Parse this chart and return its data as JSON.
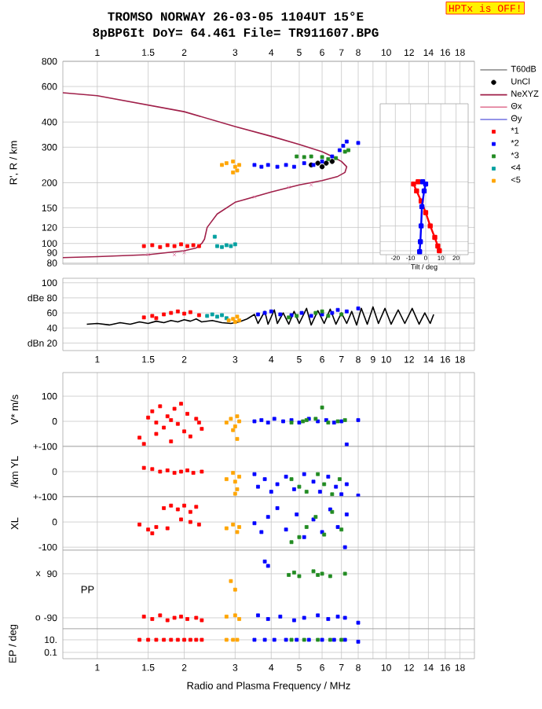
{
  "chart_data": [
    {
      "type": "scatter",
      "title": "TROMSO NORWAY   26-03-05 1104UT 15°E",
      "subtitle": "8pBP6It DoY=  64.461 File= TR911607.BPG",
      "annotations": [
        "HPTx is OFF!"
      ],
      "ylabel": "R', R / km",
      "log": "xy",
      "grid": true,
      "legend": "top right",
      "xlim": [
        0.76,
        20.2
      ],
      "ylim": [
        79,
        800
      ],
      "xticks": [
        1,
        1.5,
        2,
        3,
        4,
        5,
        6,
        7,
        8,
        {
          "value": 9,
          "label": null
        },
        10,
        12,
        14,
        16,
        18
      ],
      "yticks": [
        80,
        90,
        100,
        120,
        150,
        200,
        300,
        400,
        600,
        800
      ],
      "series": [
        {
          "name": "T60dB",
          "type": "line",
          "color": "#999999"
        },
        {
          "name": "UnCl",
          "type": "scatter",
          "marker": "circle",
          "color": "#000000",
          "x": [
            5.5,
            5.8,
            6.2,
            6.5,
            6.0
          ],
          "values": [
            245,
            250,
            250,
            255,
            240
          ]
        },
        {
          "name": "NeXYZ",
          "type": "line",
          "color": "#a0204a",
          "x": [
            0.76,
            1,
            1.5,
            2,
            2.2,
            2.3,
            2.35,
            2.4,
            2.6,
            3,
            4,
            5,
            6,
            6.8,
            7.2,
            7.3,
            7,
            6.5,
            6,
            5,
            4,
            3,
            2,
            1,
            0.76
          ],
          "values": [
            85,
            86,
            88,
            92,
            95,
            100,
            105,
            120,
            140,
            160,
            180,
            195,
            205,
            215,
            225,
            240,
            255,
            270,
            285,
            310,
            340,
            380,
            450,
            540,
            559
          ]
        },
        {
          "name": "Θx",
          "type": "line",
          "color": "#e07090"
        },
        {
          "name": "Θy",
          "type": "line",
          "color": "#7070e0"
        },
        {
          "name": "*1",
          "type": "scatter",
          "marker": "square",
          "color": "#ff0000",
          "x": [
            1.45,
            1.55,
            1.65,
            1.75,
            1.85,
            1.95,
            2.05,
            2.15,
            2.25
          ],
          "values": [
            97,
            98,
            96,
            98,
            97,
            99,
            97,
            98,
            97
          ]
        },
        {
          "name": "*2",
          "type": "scatter",
          "marker": "square",
          "color": "#0000ff",
          "x": [
            3.5,
            3.7,
            3.9,
            4.2,
            4.5,
            4.8,
            5.2,
            5.6,
            6,
            6.5,
            6.9,
            7.1,
            7.3,
            8
          ],
          "values": [
            245,
            240,
            245,
            240,
            245,
            240,
            250,
            245,
            255,
            270,
            290,
            305,
            320,
            315
          ]
        },
        {
          "name": "*3",
          "type": "scatter",
          "marker": "square",
          "color": "#228b22",
          "x": [
            4.9,
            5.2,
            5.5,
            6,
            6.3,
            6.7,
            7.2,
            7.4
          ],
          "values": [
            270,
            268,
            270,
            268,
            262,
            265,
            285,
            290
          ]
        },
        {
          "name": "<4",
          "type": "scatter",
          "marker": "square",
          "color": "#00a0a0",
          "x": [
            2.55,
            2.6,
            2.7,
            2.8,
            2.9,
            3.0
          ],
          "values": [
            108,
            97,
            96,
            98,
            97,
            99
          ]
        },
        {
          "name": "<5",
          "type": "scatter",
          "marker": "square",
          "color": "#ffa500",
          "x": [
            2.7,
            2.8,
            2.95,
            3.0,
            3.05,
            2.95,
            3.1
          ],
          "values": [
            245,
            250,
            255,
            240,
            230,
            225,
            245
          ]
        },
        {
          "type": "scatter",
          "marker": "cross",
          "color": "#e070a0",
          "x": [
            1.5,
            1.85,
            2.0,
            3.5,
            4.6,
            5.5
          ],
          "values": [
            88,
            88,
            90,
            170,
            190,
            195
          ]
        }
      ]
    },
    {
      "type": "line",
      "xlabel": "Tilt / deg",
      "log": "y",
      "grid": true,
      "tick_labels": "x",
      "xlim": [
        -30,
        28
      ],
      "ylim": [
        86,
        494
      ],
      "xticks": [
        -20,
        -10,
        0,
        10,
        20
      ],
      "yticks": [
        90,
        100,
        120,
        150,
        200,
        300,
        400
      ],
      "series": [
        {
          "color": "#ff0000",
          "marker": "square",
          "x": [
            -5,
            -8,
            -6,
            -3,
            0,
            3,
            6,
            8,
            9
          ],
          "values": [
            200,
            195,
            180,
            160,
            140,
            120,
            105,
            95,
            90
          ]
        },
        {
          "color": "#0000ff",
          "marker": "square",
          "x": [
            -2,
            0,
            -1,
            -2.5,
            -3,
            -3.5,
            -4
          ],
          "values": [
            200,
            195,
            180,
            150,
            120,
            100,
            89
          ]
        }
      ]
    },
    {
      "type": "scatter",
      "log": "x",
      "grid": true,
      "xlim": [
        0.76,
        20.2
      ],
      "ylim": [
        10,
        106
      ],
      "xticks": [
        1,
        1.5,
        2,
        3,
        4,
        5,
        6,
        7,
        8,
        9,
        10,
        12,
        14,
        16,
        18
      ],
      "yticks": [
        {
          "value": 20,
          "label": "dBn 20"
        },
        40,
        60,
        {
          "value": 80,
          "label": "dBe 80"
        },
        100
      ],
      "series": [
        {
          "type": "line",
          "color": "#000000",
          "x": [
            0.92,
            1.0,
            1.1,
            1.2,
            1.3,
            1.4,
            1.5,
            1.6,
            1.7,
            1.8,
            1.9,
            2.0,
            2.1,
            2.2,
            2.3,
            2.5,
            2.7,
            2.9,
            3.1,
            3.3,
            3.5,
            3.6,
            3.8,
            3.9,
            4.1,
            4.2,
            4.4,
            4.6,
            4.8,
            5.0,
            5.3,
            5.5,
            5.8,
            6.1,
            6.4,
            6.7,
            7.0,
            7.3,
            7.6,
            7.9,
            8.2,
            8.6,
            9.0,
            9.4,
            9.9,
            10.4,
            11,
            11.6,
            12.3,
            13,
            13.6,
            14.2,
            14.6
          ],
          "values": [
            45,
            46,
            44,
            47,
            45,
            48,
            46,
            49,
            47,
            50,
            48,
            51,
            49,
            52,
            48,
            50,
            47,
            46,
            48,
            52,
            58,
            46,
            62,
            45,
            64,
            46,
            60,
            45,
            62,
            46,
            66,
            44,
            63,
            46,
            65,
            45,
            60,
            46,
            62,
            44,
            66,
            45,
            68,
            46,
            66,
            45,
            64,
            46,
            66,
            45,
            60,
            46,
            58
          ]
        },
        {
          "color": "#ff0000",
          "marker": "square",
          "x": [
            1.45,
            1.55,
            1.6,
            1.7,
            1.8,
            1.9,
            2.0,
            2.1,
            2.25
          ],
          "values": [
            54,
            56,
            53,
            58,
            60,
            62,
            59,
            61,
            57
          ]
        },
        {
          "color": "#00a0a0",
          "marker": "square",
          "x": [
            2.4,
            2.5,
            2.6,
            2.7,
            2.8
          ],
          "values": [
            56,
            58,
            55,
            57,
            53
          ]
        },
        {
          "color": "#ffa500",
          "marker": "square",
          "x": [
            2.85,
            2.95,
            3.0,
            3.05,
            3.1
          ],
          "values": [
            50,
            52,
            48,
            55,
            50
          ]
        },
        {
          "color": "#0000ff",
          "marker": "square",
          "x": [
            3.6,
            3.8,
            4.0,
            4.3,
            4.7,
            5.1,
            5.5,
            6.0,
            6.5,
            6.8,
            7.3,
            8
          ],
          "values": [
            58,
            60,
            62,
            58,
            57,
            60,
            56,
            58,
            60,
            64,
            62,
            66
          ]
        },
        {
          "color": "#228b22",
          "marker": "square",
          "x": [
            4.6,
            4.9,
            5.7,
            6,
            6.3,
            7
          ],
          "values": [
            54,
            56,
            60,
            62,
            56,
            58
          ]
        }
      ]
    },
    {
      "type": "scatter",
      "ylabel": "V* m/s",
      "log": "x",
      "grid": true,
      "tick_labels": "y",
      "xlim": [
        0.76,
        20.2
      ],
      "ylim": [
        -100,
        194
      ],
      "xticks": [
        1,
        1.5,
        2,
        3,
        4,
        5,
        6,
        7,
        8,
        9,
        10,
        12,
        14,
        16,
        18
      ],
      "yticks": [
        100,
        0,
        {
          "value": -100,
          "label": "+-100"
        }
      ],
      "series": [
        {
          "color": "#ff0000",
          "marker": "square",
          "x": [
            1.4,
            1.45,
            1.5,
            1.55,
            1.6,
            1.65,
            1.7,
            1.75,
            1.8,
            1.85,
            1.9,
            1.95,
            2.0,
            2.05,
            2.1,
            2.2,
            2.25,
            2.3,
            1.6,
            1.8
          ],
          "values": [
            -65,
            -90,
            15,
            40,
            -50,
            60,
            -25,
            20,
            -80,
            50,
            -10,
            70,
            -40,
            30,
            -60,
            10,
            -5,
            -30,
            -5,
            5
          ]
        },
        {
          "color": "#ffa500",
          "marker": "square",
          "x": [
            2.8,
            2.9,
            3.0,
            3.05,
            3.1,
            3.05,
            2.95
          ],
          "values": [
            -5,
            10,
            -20,
            20,
            0,
            -70,
            -35
          ]
        },
        {
          "color": "#0000ff",
          "marker": "square",
          "x": [
            3.5,
            3.7,
            3.9,
            4.1,
            4.4,
            4.7,
            5.0,
            5.4,
            5.8,
            6.2,
            6.6,
            7.0,
            7.3,
            8
          ],
          "values": [
            0,
            5,
            -5,
            10,
            0,
            5,
            -5,
            10,
            0,
            5,
            -5,
            0,
            -92,
            5
          ]
        },
        {
          "color": "#228b22",
          "marker": "square",
          "x": [
            4.7,
            5.15,
            5.3,
            5.7,
            6.0,
            6.3,
            6.8,
            7.2
          ],
          "values": [
            -5,
            0,
            5,
            10,
            55,
            -5,
            0,
            5
          ]
        }
      ]
    },
    {
      "type": "scatter",
      "ylabel": "/km YL",
      "log": "x",
      "grid": true,
      "tick_labels": "y",
      "xlim": [
        0.76,
        20.2
      ],
      "ylim": [
        -100,
        100
      ],
      "xticks": [
        1,
        1.5,
        2,
        3,
        4,
        5,
        6,
        7,
        8,
        9,
        10,
        12,
        14,
        16,
        18
      ],
      "yticks": [
        0,
        {
          "value": -100,
          "label": "+-100"
        }
      ],
      "series": [
        {
          "color": "#ff0000",
          "marker": "square",
          "x": [
            1.45,
            1.55,
            1.65,
            1.75,
            1.85,
            1.95,
            2.05,
            2.15,
            2.3
          ],
          "values": [
            15,
            10,
            0,
            5,
            -5,
            0,
            5,
            -5,
            0
          ]
        },
        {
          "color": "#ffa500",
          "marker": "square",
          "x": [
            2.8,
            2.95,
            3.0,
            3.05,
            3.1,
            3.0
          ],
          "values": [
            -30,
            -5,
            -40,
            -70,
            -20,
            -88
          ]
        },
        {
          "color": "#0000ff",
          "marker": "square",
          "x": [
            3.5,
            3.6,
            3.8,
            4.0,
            4.2,
            4.5,
            4.8,
            5.2,
            5.6,
            5.9,
            6.3,
            6.7,
            7.0,
            7.3,
            8
          ],
          "values": [
            -10,
            -60,
            -30,
            -80,
            -50,
            -20,
            -70,
            -10,
            -40,
            -80,
            -20,
            -60,
            -90,
            -50,
            -95
          ]
        },
        {
          "color": "#228b22",
          "marker": "square",
          "x": [
            4.7,
            5.0,
            5.3,
            5.8,
            6.1,
            6.5,
            6.9
          ],
          "values": [
            -30,
            -60,
            -80,
            -10,
            -50,
            -90,
            -30
          ]
        }
      ]
    },
    {
      "type": "scatter",
      "ylabel": "XL",
      "log": "x",
      "grid": true,
      "tick_labels": "y",
      "xlim": [
        0.76,
        20.2
      ],
      "ylim": [
        -112,
        100
      ],
      "xticks": [
        1,
        1.5,
        2,
        3,
        4,
        5,
        6,
        7,
        8,
        9,
        10,
        12,
        14,
        16,
        18
      ],
      "yticks": [
        0,
        -100
      ],
      "series": [
        {
          "color": "#ff0000",
          "marker": "square",
          "x": [
            1.4,
            1.5,
            1.6,
            1.7,
            1.8,
            1.9,
            2.0,
            2.1,
            2.2,
            1.55,
            1.75,
            1.95,
            2.1,
            2.25
          ],
          "values": [
            -10,
            -30,
            -20,
            55,
            65,
            50,
            65,
            40,
            60,
            -45,
            -25,
            10,
            0,
            -10
          ]
        },
        {
          "color": "#ffa500",
          "marker": "square",
          "x": [
            2.8,
            2.95,
            3.05,
            3.1
          ],
          "values": [
            -25,
            -10,
            -40,
            -20
          ]
        },
        {
          "color": "#0000ff",
          "marker": "square",
          "x": [
            3.5,
            3.7,
            3.9,
            4.2,
            4.5,
            4.9,
            5.2,
            5.6,
            6,
            6.4,
            6.8,
            7.2,
            7.3
          ],
          "values": [
            -5,
            -40,
            20,
            55,
            -30,
            30,
            -60,
            10,
            -40,
            50,
            -20,
            -100,
            30
          ]
        },
        {
          "color": "#228b22",
          "marker": "square",
          "x": [
            4.7,
            5.0,
            5.3,
            5.7,
            6.1,
            6.5,
            7.0
          ],
          "values": [
            -80,
            -60,
            -20,
            20,
            -50,
            40,
            -30
          ]
        }
      ]
    },
    {
      "type": "scatter",
      "ylabel": "PP",
      "annotations": [
        "x",
        "o"
      ],
      "log": "x",
      "grid": true,
      "tick_labels": "y",
      "xlim": [
        0.76,
        20.2
      ],
      "ylim": [
        -135,
        186
      ],
      "xticks": [
        1,
        1.5,
        2,
        3,
        4,
        5,
        6,
        7,
        8,
        9,
        10,
        12,
        14,
        16,
        18
      ],
      "yticks": [
        90,
        -90
      ],
      "series": [
        {
          "color": "#ff0000",
          "marker": "square",
          "x": [
            1.45,
            1.55,
            1.65,
            1.75,
            1.85,
            1.95,
            2.05,
            2.2,
            2.3
          ],
          "values": [
            -85,
            -95,
            -80,
            -100,
            -90,
            -85,
            -95,
            -90,
            -100
          ]
        },
        {
          "color": "#ffa500",
          "marker": "square",
          "x": [
            2.8,
            3.0,
            3.1,
            3.0,
            2.9
          ],
          "values": [
            -85,
            -80,
            -95,
            25,
            60
          ]
        },
        {
          "color": "#0000ff",
          "marker": "square",
          "x": [
            3.6,
            3.9,
            4.3,
            4.8,
            5.2,
            5.8,
            6.3,
            6.8,
            7.2,
            8,
            3.8,
            3.9
          ],
          "values": [
            -80,
            -95,
            -85,
            -100,
            -90,
            -80,
            -95,
            -85,
            -90,
            -110,
            140,
            122
          ]
        },
        {
          "color": "#228b22",
          "marker": "square",
          "x": [
            4.6,
            4.8,
            5.0,
            5.6,
            5.8,
            6.0,
            6.4,
            7.2
          ],
          "values": [
            85,
            95,
            80,
            100,
            85,
            90,
            80,
            90
          ]
        }
      ]
    },
    {
      "type": "scatter",
      "ylabel": "EP / deg",
      "xlabel": "Radio and Plasma Frequency / MHz",
      "log": "xy",
      "grid": true,
      "xlim": [
        0.76,
        20.2
      ],
      "ylim": [
        0.01,
        560
      ],
      "xticks": [
        1,
        1.5,
        2,
        3,
        4,
        5,
        6,
        7,
        8,
        {
          "value": 9,
          "label": null
        },
        10,
        12,
        14,
        16,
        18
      ],
      "yticks": [
        {
          "value": 10,
          "label": "10."
        },
        0.1
      ],
      "series": [
        {
          "color": "#ff0000",
          "marker": "square",
          "x": [
            1.4,
            1.5,
            1.6,
            1.7,
            1.8,
            1.9,
            2.0,
            2.1,
            2.2,
            2.3
          ],
          "values": [
            10,
            10,
            10,
            10,
            10,
            10,
            10,
            10,
            10,
            10
          ]
        },
        {
          "color": "#ffa500",
          "marker": "square",
          "x": [
            2.8,
            2.95,
            3.05
          ],
          "values": [
            10,
            10,
            10
          ]
        },
        {
          "color": "#0000ff",
          "marker": "square",
          "x": [
            3.5,
            3.8,
            4.1,
            4.5,
            4.9,
            5.4,
            6.0,
            6.6,
            7.2,
            8
          ],
          "values": [
            10,
            10,
            10,
            10,
            10,
            10,
            10,
            10,
            10,
            5
          ]
        },
        {
          "color": "#228b22",
          "marker": "square",
          "x": [
            4.7,
            5.2,
            5.8,
            6.4,
            7.0
          ],
          "values": [
            10,
            10,
            10,
            10,
            10
          ]
        }
      ]
    }
  ]
}
